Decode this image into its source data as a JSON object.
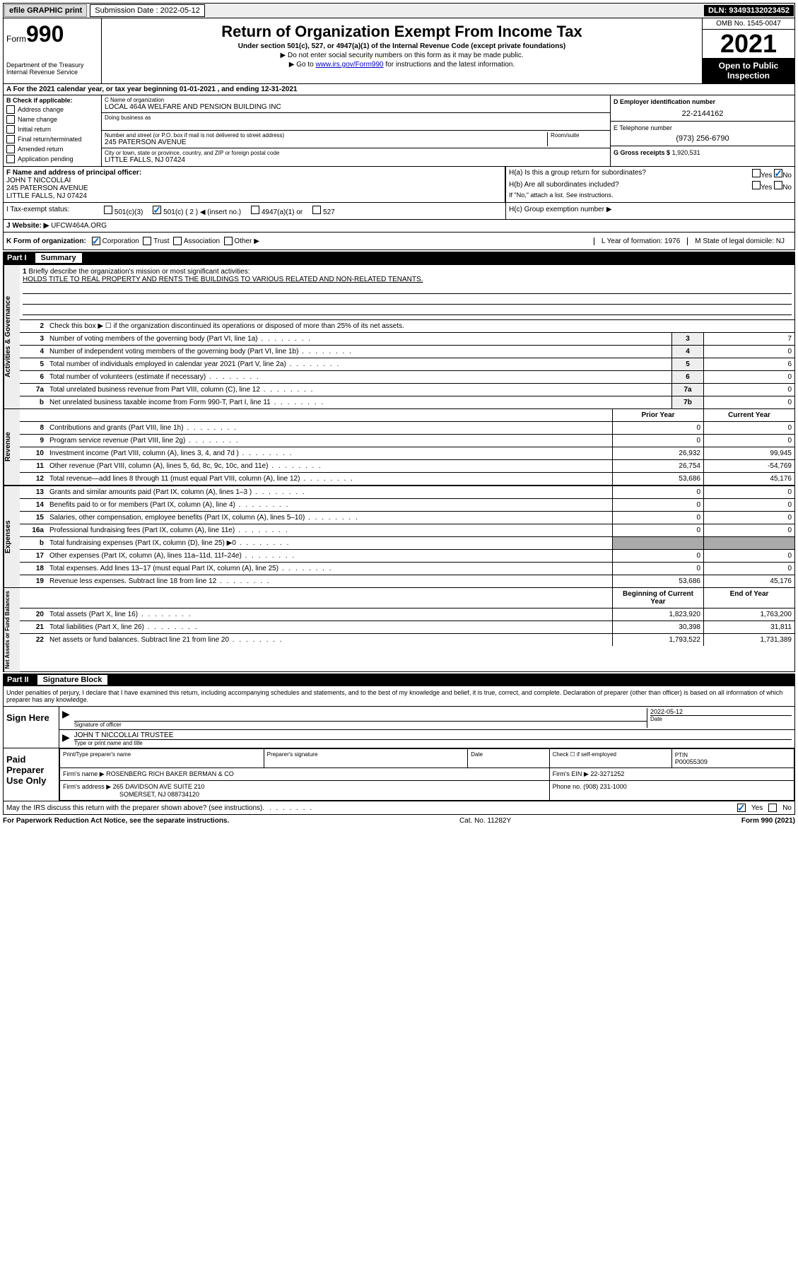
{
  "topbar": {
    "efile": "efile GRAPHIC print",
    "sub_label": "Submission Date : 2022-05-12",
    "dln": "DLN: 93493132023452"
  },
  "header": {
    "form_prefix": "Form",
    "form_number": "990",
    "dept": "Department of the Treasury",
    "irs": "Internal Revenue Service",
    "title": "Return of Organization Exempt From Income Tax",
    "subtitle": "Under section 501(c), 527, or 4947(a)(1) of the Internal Revenue Code (except private foundations)",
    "note1": "▶ Do not enter social security numbers on this form as it may be made public.",
    "note2_pre": "▶ Go to ",
    "note2_link": "www.irs.gov/Form990",
    "note2_post": " for instructions and the latest information.",
    "omb": "OMB No. 1545-0047",
    "year": "2021",
    "open_public": "Open to Public Inspection"
  },
  "row_a": "A For the 2021 calendar year, or tax year beginning 01-01-2021   , and ending 12-31-2021",
  "col_b": {
    "header": "B Check if applicable:",
    "items": [
      "Address change",
      "Name change",
      "Initial return",
      "Final return/terminated",
      "Amended return",
      "Application pending"
    ]
  },
  "col_c": {
    "name_label": "C Name of organization",
    "name": "LOCAL 464A WELFARE AND PENSION BUILDING INC",
    "dba_label": "Doing business as",
    "addr_label": "Number and street (or P.O. box if mail is not delivered to street address)",
    "room_label": "Room/suite",
    "addr": "245 PATERSON AVENUE",
    "city_label": "City or town, state or province, country, and ZIP or foreign postal code",
    "city": "LITTLE FALLS, NJ  07424"
  },
  "col_de": {
    "d_label": "D Employer identification number",
    "d_val": "22-2144162",
    "e_label": "E Telephone number",
    "e_val": "(973) 256-6790",
    "g_label": "G Gross receipts $",
    "g_val": "1,920,531"
  },
  "row_f": {
    "label": "F Name and address of principal officer:",
    "name": "JOHN T NICCOLLAI",
    "addr1": "245 PATERSON AVENUE",
    "addr2": "LITTLE FALLS, NJ  07424"
  },
  "row_h": {
    "ha": "H(a)  Is this a group return for subordinates?",
    "hb": "H(b)  Are all subordinates included?",
    "hb_note": "If \"No,\" attach a list. See instructions.",
    "hc": "H(c)  Group exemption number ▶",
    "yes": "Yes",
    "no": "No"
  },
  "row_i": {
    "label": "I   Tax-exempt status:",
    "opt1": "501(c)(3)",
    "opt2": "501(c) ( 2 ) ◀ (insert no.)",
    "opt3": "4947(a)(1) or",
    "opt4": "527"
  },
  "row_j": {
    "label": "J   Website: ▶",
    "val": "UFCW464A.ORG"
  },
  "row_k": {
    "label": "K Form of organization:",
    "opts": [
      "Corporation",
      "Trust",
      "Association",
      "Other ▶"
    ],
    "l": "L Year of formation: 1976",
    "m": "M State of legal domicile: NJ"
  },
  "part1": {
    "header": "Part I",
    "title": "Summary"
  },
  "mission": {
    "num": "1",
    "label": "Briefly describe the organization's mission or most significant activities:",
    "text": "HOLDS TITLE TO REAL PROPERTY AND RENTS THE BUILDINGS TO VARIOUS RELATED AND NON-RELATED TENANTS."
  },
  "gov_lines": [
    {
      "num": "2",
      "desc": "Check this box ▶ ☐  if the organization discontinued its operations or disposed of more than 25% of its net assets.",
      "box": "",
      "val": ""
    },
    {
      "num": "3",
      "desc": "Number of voting members of the governing body (Part VI, line 1a)",
      "box": "3",
      "val": "7"
    },
    {
      "num": "4",
      "desc": "Number of independent voting members of the governing body (Part VI, line 1b)",
      "box": "4",
      "val": "0"
    },
    {
      "num": "5",
      "desc": "Total number of individuals employed in calendar year 2021 (Part V, line 2a)",
      "box": "5",
      "val": "6"
    },
    {
      "num": "6",
      "desc": "Total number of volunteers (estimate if necessary)",
      "box": "6",
      "val": "0"
    },
    {
      "num": "7a",
      "desc": "Total unrelated business revenue from Part VIII, column (C), line 12",
      "box": "7a",
      "val": "0"
    },
    {
      "num": "b",
      "desc": "Net unrelated business taxable income from Form 990-T, Part I, line 11",
      "box": "7b",
      "val": "0"
    }
  ],
  "col_headers": {
    "prior": "Prior Year",
    "current": "Current Year"
  },
  "rev_lines": [
    {
      "num": "8",
      "desc": "Contributions and grants (Part VIII, line 1h)",
      "prior": "0",
      "cur": "0"
    },
    {
      "num": "9",
      "desc": "Program service revenue (Part VIII, line 2g)",
      "prior": "0",
      "cur": "0"
    },
    {
      "num": "10",
      "desc": "Investment income (Part VIII, column (A), lines 3, 4, and 7d )",
      "prior": "26,932",
      "cur": "99,945"
    },
    {
      "num": "11",
      "desc": "Other revenue (Part VIII, column (A), lines 5, 6d, 8c, 9c, 10c, and 11e)",
      "prior": "26,754",
      "cur": "-54,769"
    },
    {
      "num": "12",
      "desc": "Total revenue—add lines 8 through 11 (must equal Part VIII, column (A), line 12)",
      "prior": "53,686",
      "cur": "45,176"
    }
  ],
  "exp_lines": [
    {
      "num": "13",
      "desc": "Grants and similar amounts paid (Part IX, column (A), lines 1–3 )",
      "prior": "0",
      "cur": "0"
    },
    {
      "num": "14",
      "desc": "Benefits paid to or for members (Part IX, column (A), line 4)",
      "prior": "0",
      "cur": "0"
    },
    {
      "num": "15",
      "desc": "Salaries, other compensation, employee benefits (Part IX, column (A), lines 5–10)",
      "prior": "0",
      "cur": "0"
    },
    {
      "num": "16a",
      "desc": "Professional fundraising fees (Part IX, column (A), line 11e)",
      "prior": "0",
      "cur": "0"
    },
    {
      "num": "b",
      "desc": "Total fundraising expenses (Part IX, column (D), line 25) ▶0",
      "prior": "grey",
      "cur": "grey"
    },
    {
      "num": "17",
      "desc": "Other expenses (Part IX, column (A), lines 11a–11d, 11f–24e)",
      "prior": "0",
      "cur": "0"
    },
    {
      "num": "18",
      "desc": "Total expenses. Add lines 13–17 (must equal Part IX, column (A), line 25)",
      "prior": "0",
      "cur": "0"
    },
    {
      "num": "19",
      "desc": "Revenue less expenses. Subtract line 18 from line 12",
      "prior": "53,686",
      "cur": "45,176"
    }
  ],
  "na_header": {
    "begin": "Beginning of Current Year",
    "end": "End of Year"
  },
  "na_lines": [
    {
      "num": "20",
      "desc": "Total assets (Part X, line 16)",
      "prior": "1,823,920",
      "cur": "1,763,200"
    },
    {
      "num": "21",
      "desc": "Total liabilities (Part X, line 26)",
      "prior": "30,398",
      "cur": "31,811"
    },
    {
      "num": "22",
      "desc": "Net assets or fund balances. Subtract line 21 from line 20",
      "prior": "1,793,522",
      "cur": "1,731,389"
    }
  ],
  "part2": {
    "header": "Part II",
    "title": "Signature Block"
  },
  "sig": {
    "declaration": "Under penalties of perjury, I declare that I have examined this return, including accompanying schedules and statements, and to the best of my knowledge and belief, it is true, correct, and complete. Declaration of preparer (other than officer) is based on all information of which preparer has any knowledge.",
    "sign_here": "Sign Here",
    "sig_officer": "Signature of officer",
    "date": "Date",
    "date_val": "2022-05-12",
    "name_title": "JOHN T NICCOLLAI  TRUSTEE",
    "name_title_label": "Type or print name and title"
  },
  "prep": {
    "label": "Paid Preparer Use Only",
    "h1": "Print/Type preparer's name",
    "h2": "Preparer's signature",
    "h3": "Date",
    "h4_check": "Check ☐ if self-employed",
    "h5": "PTIN",
    "ptin": "P00055309",
    "firm_name_label": "Firm's name    ▶",
    "firm_name": "ROSENBERG RICH BAKER BERMAN & CO",
    "firm_ein_label": "Firm's EIN ▶",
    "firm_ein": "22-3271252",
    "firm_addr_label": "Firm's address ▶",
    "firm_addr": "265 DAVIDSON AVE SUITE 210",
    "firm_city": "SOMERSET, NJ  088734120",
    "phone_label": "Phone no.",
    "phone": "(908) 231-1000"
  },
  "footer": {
    "may": "May the IRS discuss this return with the preparer shown above? (see instructions)",
    "yes": "Yes",
    "no": "No",
    "paperwork": "For Paperwork Reduction Act Notice, see the separate instructions.",
    "cat": "Cat. No. 11282Y",
    "form": "Form 990 (2021)"
  }
}
